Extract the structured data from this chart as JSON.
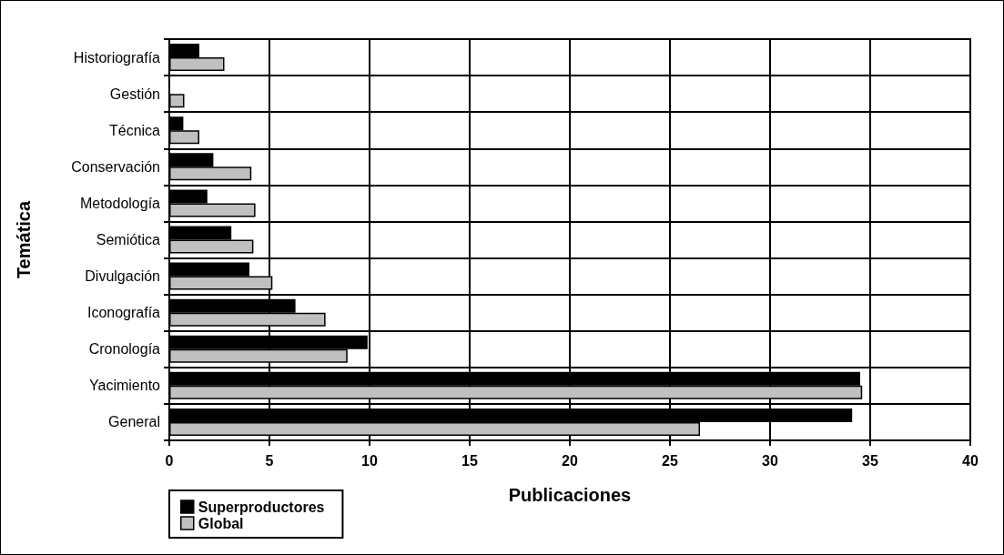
{
  "chart_data": {
    "type": "bar",
    "orientation": "horizontal",
    "xlabel": "Publicaciones",
    "ylabel": "Temática",
    "categories": [
      "Historiografía",
      "Gestión",
      "Técnica",
      "Conservación",
      "Metodología",
      "Semiótica",
      "Divulgación",
      "Iconografía",
      "Cronología",
      "Yacimiento",
      "General"
    ],
    "series": [
      {
        "name": "Superproductores",
        "color": "#000000",
        "values": [
          1.5,
          0,
          0.7,
          2.2,
          1.9,
          3.1,
          4.0,
          6.3,
          9.9,
          34.5,
          34.1
        ]
      },
      {
        "name": "Global",
        "color": "#c0c0c0",
        "values": [
          2.75,
          0.75,
          1.5,
          4.1,
          4.3,
          4.2,
          5.15,
          7.8,
          8.9,
          34.6,
          26.5
        ]
      }
    ],
    "xlim": [
      0,
      40
    ],
    "xticks": [
      0,
      5,
      10,
      15,
      20,
      25,
      30,
      35,
      40
    ],
    "grid": true,
    "legend": "bottom left"
  }
}
